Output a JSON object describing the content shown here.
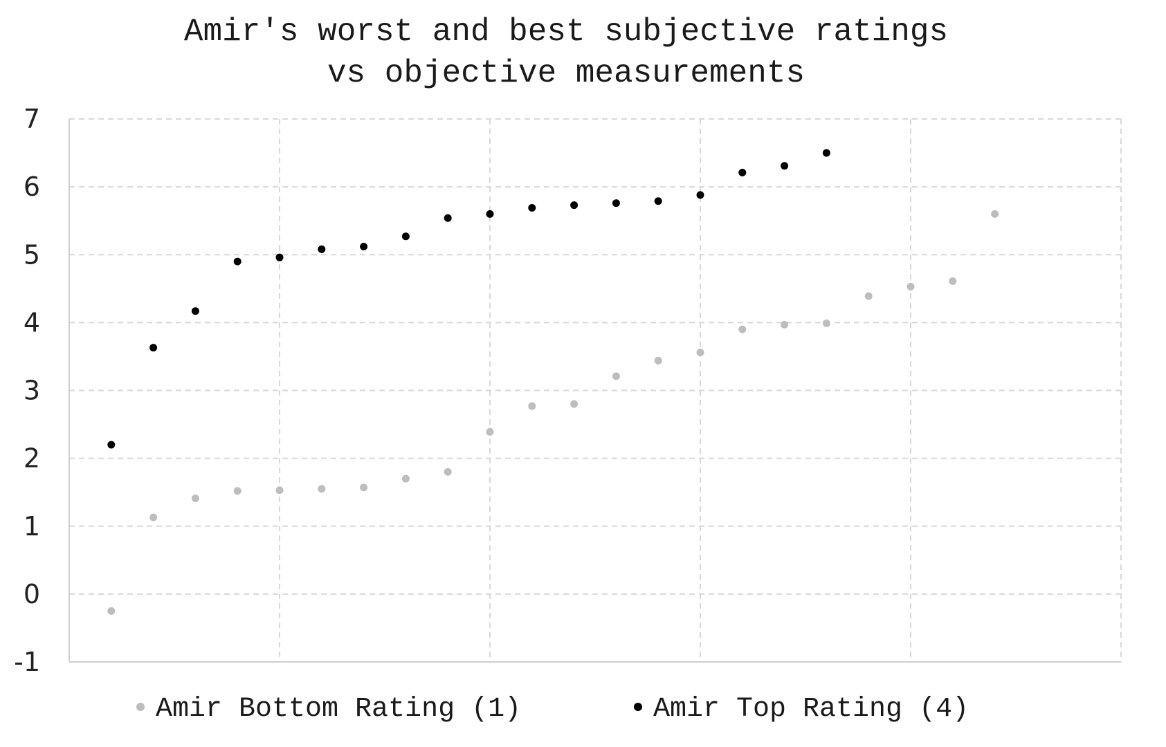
{
  "chart_data": {
    "type": "scatter",
    "title_lines": [
      "Amir's worst and best subjective ratings",
      "vs objective measurements"
    ],
    "xlim": [
      0,
      25
    ],
    "ylim": [
      -1,
      7
    ],
    "x_gridlines": [
      0,
      5,
      10,
      15,
      20,
      25
    ],
    "y_ticks": [
      -1,
      0,
      1,
      2,
      3,
      4,
      5,
      6,
      7
    ],
    "y_tick_labels": [
      "-1",
      "0",
      "1",
      "2",
      "3",
      "4",
      "5",
      "6",
      "7"
    ],
    "grid": true,
    "legend_position": "bottom",
    "series": [
      {
        "name": "Amir Bottom Rating (1)",
        "color": "#bdbdbd",
        "x": [
          1,
          2,
          3,
          4,
          5,
          6,
          7,
          8,
          9,
          10,
          11,
          12,
          13,
          14,
          15,
          16,
          17,
          18,
          19,
          20,
          21,
          22
        ],
        "y": [
          -0.25,
          1.13,
          1.41,
          1.52,
          1.53,
          1.55,
          1.57,
          1.7,
          1.8,
          2.39,
          2.77,
          2.8,
          3.21,
          3.44,
          3.56,
          3.9,
          3.97,
          3.99,
          4.39,
          4.53,
          4.61,
          5.6
        ]
      },
      {
        "name": "Amir Top Rating (4)",
        "color": "#000000",
        "x": [
          1,
          2,
          3,
          4,
          5,
          6,
          7,
          8,
          9,
          10,
          11,
          12,
          13,
          14,
          15,
          16,
          17,
          18
        ],
        "y": [
          2.2,
          3.63,
          4.17,
          4.9,
          4.96,
          5.08,
          5.12,
          5.27,
          5.54,
          5.6,
          5.69,
          5.73,
          5.76,
          5.79,
          5.88,
          6.21,
          6.31,
          6.5
        ]
      }
    ]
  }
}
